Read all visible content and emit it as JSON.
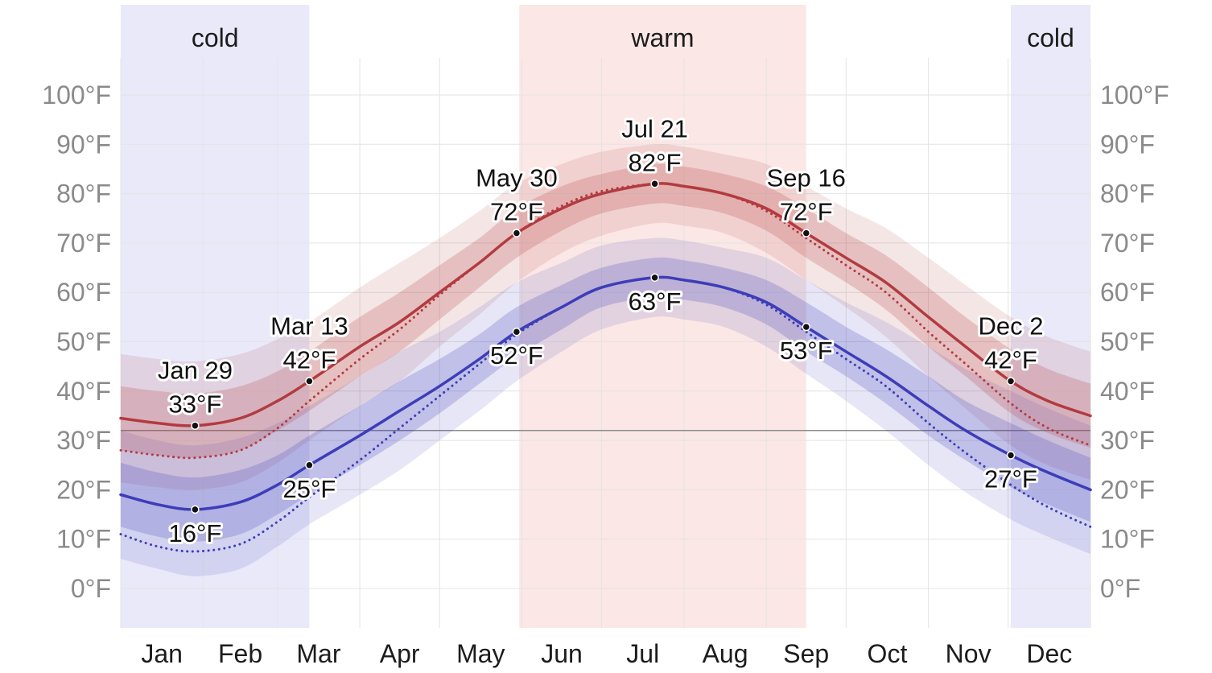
{
  "colors": {
    "high_line": "#b23b3f",
    "low_line": "#3d3db8",
    "grid": "#e4e4e4",
    "freezing_line": "#8c8c8c",
    "axis_text": "#8a8a8a",
    "label_text": "#1c1c1c",
    "annotation_dot": "#111111",
    "cold_band": "#e9e9fa",
    "warm_band": "#fbe7e5"
  },
  "seasons": [
    {
      "label": "cold",
      "start_day": 0,
      "end_day": 71
    },
    {
      "label": "warm",
      "start_day": 150,
      "end_day": 258
    },
    {
      "label": "cold",
      "start_day": 335,
      "end_day": 365
    }
  ],
  "y_axis": {
    "ticks": [
      {
        "value": 0,
        "label": "0°F"
      },
      {
        "value": 10,
        "label": "10°F"
      },
      {
        "value": 20,
        "label": "20°F"
      },
      {
        "value": 30,
        "label": "30°F"
      },
      {
        "value": 40,
        "label": "40°F"
      },
      {
        "value": 50,
        "label": "50°F"
      },
      {
        "value": 60,
        "label": "60°F"
      },
      {
        "value": 70,
        "label": "70°F"
      },
      {
        "value": 80,
        "label": "80°F"
      },
      {
        "value": 90,
        "label": "90°F"
      },
      {
        "value": 100,
        "label": "100°F"
      }
    ]
  },
  "x_axis": {
    "months": [
      "Jan",
      "Feb",
      "Mar",
      "Apr",
      "May",
      "Jun",
      "Jul",
      "Aug",
      "Sep",
      "Oct",
      "Nov",
      "Dec"
    ],
    "month_boundaries": [
      0,
      31,
      59,
      90,
      120,
      151,
      181,
      212,
      243,
      273,
      304,
      334,
      365
    ]
  },
  "chart_data": {
    "type": "area",
    "x_unit": "day_of_year",
    "ylim": [
      0,
      100
    ],
    "freezing_line_f": 32,
    "days": [
      0,
      14,
      28,
      45,
      59,
      71,
      90,
      105,
      120,
      135,
      149,
      166,
      181,
      201,
      212,
      227,
      243,
      258,
      273,
      288,
      304,
      318,
      335,
      349,
      365
    ],
    "series": [
      {
        "name": "average-high",
        "color_key": "high_line",
        "mean": [
          34.5,
          33.5,
          33,
          34.5,
          38,
          42,
          49,
          54,
          60,
          66,
          72,
          77,
          80,
          82,
          81.5,
          80,
          77,
          72,
          67,
          62,
          55,
          49,
          42,
          38,
          35
        ],
        "dotted": [
          28,
          27,
          26.5,
          28,
          32.5,
          38,
          46.5,
          52.5,
          59.5,
          66,
          72,
          77.5,
          80.5,
          82,
          81.5,
          80,
          76.5,
          71,
          65.5,
          60,
          52,
          45.5,
          37.5,
          32.5,
          29
        ],
        "inner_hi": [
          41,
          40,
          39.5,
          41,
          44,
          48,
          55,
          60,
          65.5,
          71,
          77,
          81.5,
          84,
          86,
          85.5,
          84,
          81.5,
          77,
          72,
          67.5,
          61,
          55,
          48.5,
          44.5,
          41.5
        ],
        "inner_lo": [
          28,
          27,
          26.5,
          28,
          32,
          36,
          43,
          48,
          54.5,
          61,
          67,
          72.5,
          76,
          78,
          77.5,
          76,
          72.5,
          67,
          62,
          56.5,
          49,
          43,
          35.5,
          31.5,
          28.5
        ],
        "outer_hi": [
          47.5,
          46.5,
          46,
          47.5,
          50.5,
          54,
          61,
          66,
          71,
          76.5,
          82,
          86,
          88.5,
          90,
          89.5,
          88,
          86,
          81.5,
          77,
          73,
          67,
          61.5,
          55,
          51,
          48
        ],
        "outer_lo": [
          21.5,
          20.5,
          20,
          21.5,
          25.5,
          30,
          37,
          42,
          49,
          55.5,
          62,
          68,
          71.5,
          74,
          73.5,
          72,
          68,
          62.5,
          57,
          51,
          43,
          36.5,
          29,
          25,
          22
        ]
      },
      {
        "name": "average-low",
        "color_key": "low_line",
        "mean": [
          19,
          17,
          16,
          17.5,
          21,
          25,
          31,
          36,
          41,
          46.5,
          52,
          57,
          61,
          63,
          62.5,
          61,
          58,
          53,
          48,
          43,
          37,
          32,
          27,
          23.5,
          20
        ],
        "dotted": [
          11,
          8.5,
          7.5,
          9,
          13.5,
          18.5,
          26,
          32.5,
          39,
          45.5,
          51.5,
          57,
          61,
          63,
          62.5,
          61,
          57.5,
          52,
          46.5,
          41,
          33.5,
          27.5,
          21,
          16.5,
          12.5
        ],
        "inner_hi": [
          25.5,
          23.5,
          22.5,
          24,
          27,
          31,
          37,
          42,
          46.5,
          51.5,
          57,
          61.5,
          65,
          67,
          66.5,
          65,
          62.5,
          58,
          53,
          48.5,
          43,
          38,
          33.5,
          30,
          26.5
        ],
        "inner_lo": [
          12.5,
          10.5,
          9.5,
          11,
          15,
          19,
          25,
          30,
          35.5,
          41.5,
          47,
          52.5,
          57,
          59,
          58.5,
          57,
          53.5,
          48,
          43,
          37.5,
          31,
          26,
          20.5,
          17,
          13.5
        ],
        "outer_hi": [
          32,
          30,
          29,
          30.5,
          33.5,
          37,
          43,
          48,
          52,
          57,
          62,
          66,
          69.5,
          71,
          70.5,
          69,
          67,
          62.5,
          58,
          54,
          49,
          44.5,
          40,
          36.5,
          33
        ],
        "outer_lo": [
          6,
          4,
          2.5,
          4,
          8.5,
          13,
          19,
          24,
          30,
          36,
          42,
          48,
          52.5,
          55,
          54.5,
          53,
          49,
          43.5,
          38,
          32,
          25,
          19.5,
          14,
          10.5,
          7
        ]
      }
    ],
    "annotations": [
      {
        "day": 28,
        "date_label": "Jan 29",
        "high": 33,
        "high_label": "33°F",
        "low": 16,
        "low_label": "16°F"
      },
      {
        "day": 71,
        "date_label": "Mar 13",
        "high": 42,
        "high_label": "42°F",
        "low": 25,
        "low_label": "25°F"
      },
      {
        "day": 149,
        "date_label": "May 30",
        "high": 72,
        "high_label": "72°F",
        "low": 52,
        "low_label": "52°F"
      },
      {
        "day": 201,
        "date_label": "Jul 21",
        "high": 82,
        "high_label": "82°F",
        "low": 63,
        "low_label": "63°F"
      },
      {
        "day": 258,
        "date_label": "Sep 16",
        "high": 72,
        "high_label": "72°F",
        "low": 53,
        "low_label": "53°F"
      },
      {
        "day": 335,
        "date_label": "Dec 2",
        "high": 42,
        "high_label": "42°F",
        "low": 27,
        "low_label": "27°F"
      }
    ]
  }
}
